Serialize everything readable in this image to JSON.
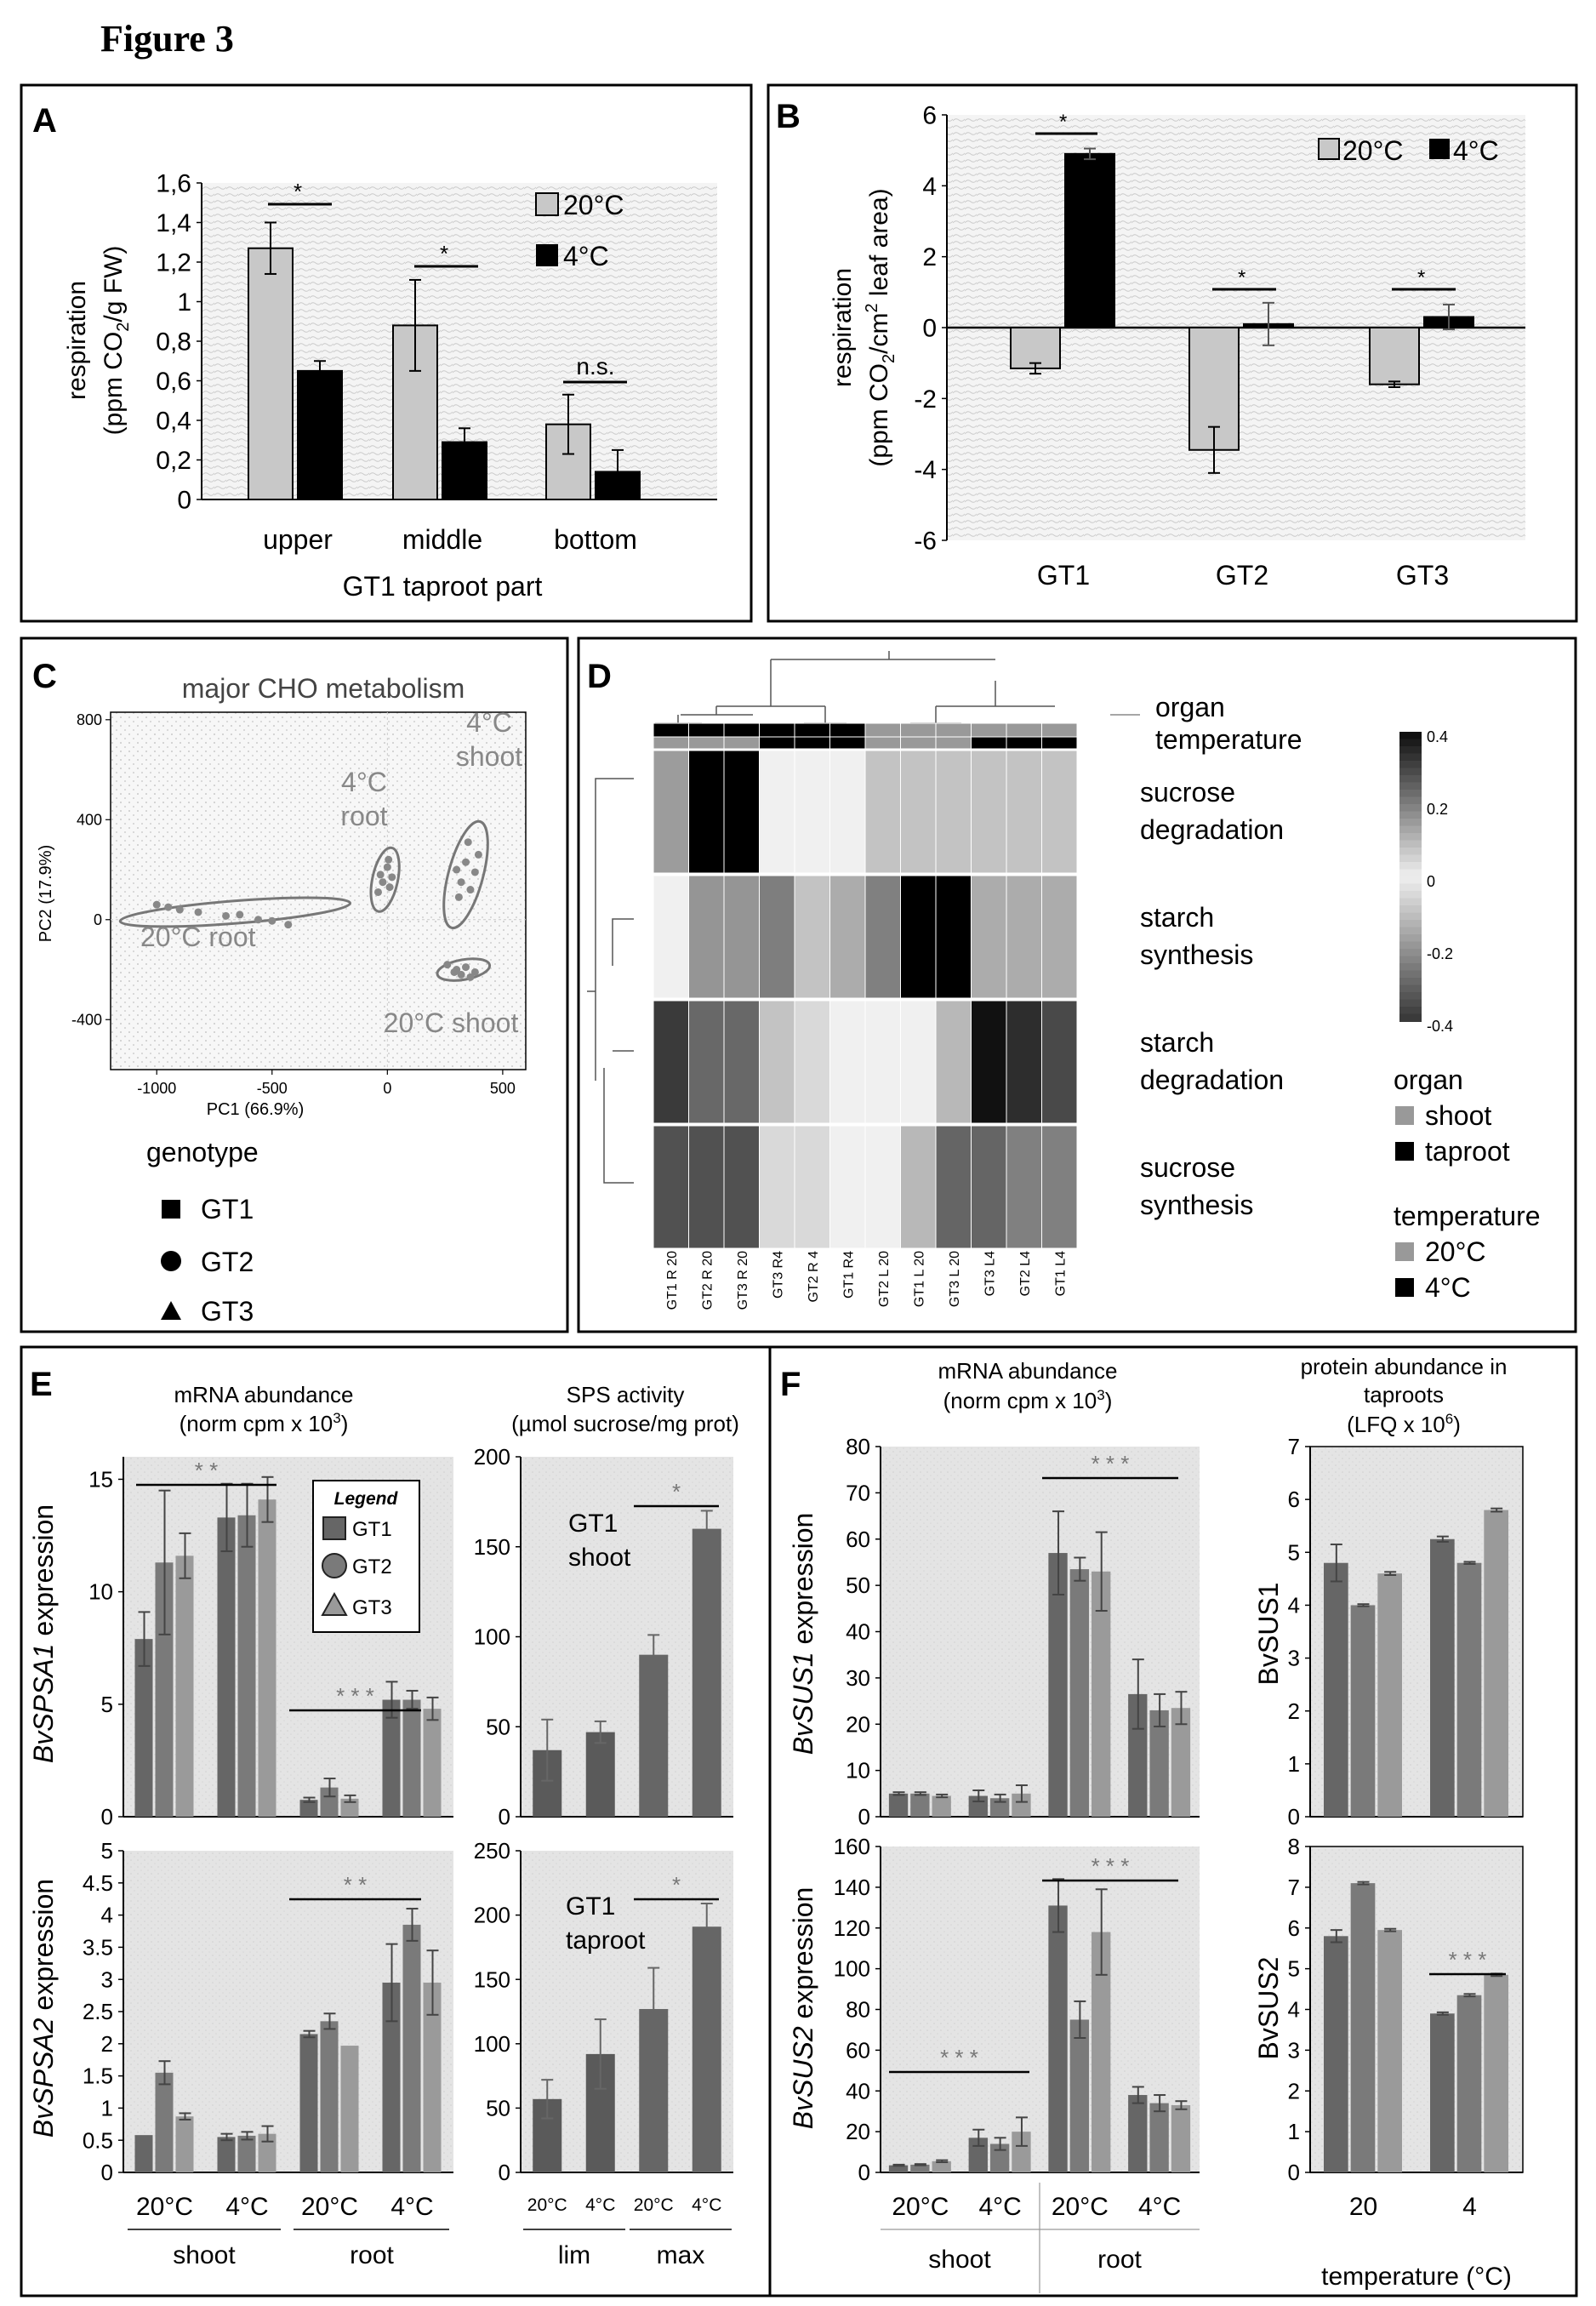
{
  "figure_title": "Figure 3",
  "colors": {
    "gray_bar": "#c8c8c8",
    "black_bar": "#000000",
    "gt1": "#666666",
    "gt2": "#7a7a7a",
    "gt3": "#9a9a9a",
    "dark": "#555555",
    "bg": "#eeeeee",
    "heat_high": "#111111",
    "heat_low": "#3a3a3a",
    "heat_mid": "#efefef"
  },
  "panels": {
    "A": {
      "letter": "A",
      "xgroup_label": "GT1 taproot part",
      "ylabel_1": "respiration",
      "ylabel_2": "(ppm CO",
      "ylabel_sub": "2",
      "ylabel_3": "/g FW)",
      "ticklabels": [
        "0",
        "0,2",
        "0,4",
        "0,6",
        "0,8",
        "1",
        "1,2",
        "1,4",
        "1,6"
      ],
      "legend": [
        "20°C",
        "4°C"
      ],
      "sig": [
        "*",
        "*",
        "n.s."
      ]
    },
    "B": {
      "letter": "B",
      "ylabel_1": "respiration",
      "ylabel_2": "(ppm CO",
      "ylabel_sub": "2",
      "ylabel_3": "/cm",
      "ylabel_sup": "2",
      "ylabel_4": " leaf area)",
      "legend": [
        "20°C",
        "4°C"
      ],
      "sig": [
        "*",
        "*",
        "*"
      ]
    },
    "C": {
      "letter": "C",
      "title": "major CHO metabolism",
      "xlabel": "PC1 (66.9%)",
      "ylabel": "PC2 (17.9%)",
      "xticks": [
        "-1000",
        "-500",
        "0",
        "500"
      ],
      "yticks": [
        "800",
        "400",
        "0",
        "-400"
      ],
      "groups": [
        "20°C root",
        "4°C root",
        "4°C shoot",
        "20°C shoot"
      ],
      "group_lines": [
        [
          "20°C root"
        ],
        [
          "4°C",
          "root"
        ],
        [
          "4°C",
          "shoot"
        ],
        [
          "20°C shoot"
        ]
      ],
      "legend_title": "genotype",
      "legend": [
        "GT1",
        "GT2",
        "GT3"
      ]
    },
    "D": {
      "letter": "D",
      "label_organ": "organ",
      "label_temperature": "temperature",
      "rows": [
        [
          "sucrose",
          "degradation"
        ],
        [
          "starch",
          "synthesis"
        ],
        [
          "starch",
          "degradation"
        ],
        [
          "sucrose",
          "synthesis"
        ]
      ],
      "columns": [
        "GT1 R 20",
        "GT2 R 20",
        "GT3 R 20",
        "GT3 R4",
        "GT2 R 4",
        "GT1 R4",
        "GT2 L 20",
        "GT1 L 20",
        "GT3 L 20",
        "GT3 L4",
        "GT2 L4",
        "GT1 L4"
      ],
      "scale_ticks": [
        "0.4",
        "0.2",
        "0",
        "-0.2",
        "-0.4"
      ],
      "organ_title": "organ",
      "organ_items": [
        "shoot",
        "taproot"
      ],
      "temperature_title": "temperature",
      "temperature_items": [
        "20°C",
        "4°C"
      ]
    },
    "E": {
      "letter": "E",
      "mrna_title_1": "mRNA abundance",
      "mrna_title_2": "(norm cpm x 10",
      "mrna_sup": "3",
      "mrna_title_3": ")",
      "sps_title_1": "SPS activity",
      "sps_title_2": "(µmol sucrose/mg prot)",
      "ylabel_top_gene": "BvSPSA1",
      "ylabel_bottom_gene": "BvSPSA2",
      "ylabel_suffix": " expression",
      "legend_title": "Legend",
      "legend": [
        "GT1",
        "GT2",
        "GT3"
      ],
      "top_ticks": [
        "0",
        "5",
        "10",
        "15"
      ],
      "bottom_ticks": [
        "0",
        "0.5",
        "1",
        "1.5",
        "2",
        "2.5",
        "3",
        "3.5",
        "4",
        "4.5",
        "5"
      ],
      "sps_top_ticks": [
        "0",
        "50",
        "100",
        "150",
        "200"
      ],
      "sps_bottom_ticks": [
        "0",
        "50",
        "100",
        "150",
        "200",
        "250"
      ],
      "sps_top_label_1": "GT1",
      "sps_top_label_2": "shoot",
      "sps_bottom_label_1": "GT1",
      "sps_bottom_label_2": "taproot",
      "temps": [
        "20°C",
        "4°C",
        "20°C",
        "4°C"
      ],
      "organs": [
        "shoot",
        "root"
      ],
      "sps_temps": [
        "20°C",
        "4°C",
        "20°C",
        "4°C"
      ],
      "sps_groups": [
        "lim",
        "max"
      ],
      "sig_top": [
        "* *",
        "* * *"
      ],
      "sig_bottom": [
        "* *"
      ],
      "sig_sps": [
        "*",
        "*"
      ]
    },
    "F": {
      "letter": "F",
      "mrna_title_1": "mRNA abundance",
      "mrna_title_2": "(norm cpm x 10",
      "mrna_sup": "3",
      "mrna_title_3": ")",
      "prot_title_1": "protein abundance in",
      "prot_title_2": "taproots",
      "prot_title_3": "(LFQ x 10",
      "prot_sup": "6",
      "prot_title_4": ")",
      "ylabel_top_gene": "BvSUS1",
      "ylabel_bottom_gene": "BvSUS2",
      "ylabel_suffix": " expression",
      "prot_ylabel_top": "BvSUS1",
      "prot_ylabel_bottom": "BvSUS2",
      "top_ticks": [
        "0",
        "10",
        "20",
        "30",
        "40",
        "50",
        "60",
        "70",
        "80"
      ],
      "bottom_ticks": [
        "0",
        "20",
        "40",
        "60",
        "80",
        "100",
        "120",
        "140",
        "160"
      ],
      "prot_top_ticks": [
        "0",
        "1",
        "2",
        "3",
        "4",
        "5",
        "6",
        "7"
      ],
      "prot_bottom_ticks": [
        "0",
        "1",
        "2",
        "3",
        "4",
        "5",
        "6",
        "7",
        "8"
      ],
      "temps": [
        "20°C",
        "4°C",
        "20°C",
        "4°C"
      ],
      "organs": [
        "shoot",
        "root"
      ],
      "prot_temps": [
        "20",
        "4"
      ],
      "prot_xlabel": "temperature (°C)",
      "sig_top": [
        "* * *"
      ],
      "sig_bottom": [
        "* * *",
        "* * *"
      ],
      "sig_prot": [
        "* * *"
      ]
    }
  },
  "chart_data": [
    {
      "panel": "A",
      "type": "bar",
      "title": "",
      "xlabel": "GT1 taproot part",
      "ylabel": "respiration (ppm CO2/g FW)",
      "categories": [
        "upper",
        "middle",
        "bottom"
      ],
      "ylim": [
        0,
        1.6
      ],
      "series": [
        {
          "name": "20°C",
          "values": [
            1.27,
            0.88,
            0.38
          ],
          "errors": [
            0.13,
            0.23,
            0.15
          ]
        },
        {
          "name": "4°C",
          "values": [
            0.65,
            0.29,
            0.14
          ],
          "errors": [
            0.05,
            0.07,
            0.11
          ]
        }
      ]
    },
    {
      "panel": "B",
      "type": "bar",
      "title": "",
      "ylabel": "respiration (ppm CO2/cm2 leaf area)",
      "categories": [
        "GT1",
        "GT2",
        "GT3"
      ],
      "ylim": [
        -6,
        6
      ],
      "yticks": [
        "-6",
        "-4",
        "-2",
        "0",
        "2",
        "4",
        "6"
      ],
      "series": [
        {
          "name": "20°C",
          "values": [
            -1.15,
            -3.45,
            -1.6
          ],
          "errors": [
            0.15,
            0.65,
            0.08
          ]
        },
        {
          "name": "4°C",
          "values": [
            4.9,
            0.1,
            0.3
          ],
          "errors": [
            0.15,
            0.6,
            0.35
          ]
        }
      ]
    },
    {
      "panel": "C",
      "type": "scatter",
      "title": "major CHO metabolism",
      "xlabel": "PC1 (66.9%)",
      "ylabel": "PC2 (17.9%)",
      "xlim": [
        -1200,
        600
      ],
      "ylim": [
        -600,
        830
      ],
      "groups": [
        {
          "name": "20°C root",
          "center": [
            -660,
            30
          ],
          "points": [
            [
              -1000,
              60
            ],
            [
              -950,
              50
            ],
            [
              -900,
              40
            ],
            [
              -820,
              30
            ],
            [
              -700,
              15
            ],
            [
              -640,
              20
            ],
            [
              -560,
              0
            ],
            [
              -500,
              -5
            ],
            [
              -430,
              -20
            ]
          ],
          "ellipse": {
            "rx": 500,
            "ry": 45,
            "angle_deg": -4.5
          }
        },
        {
          "name": "4°C root",
          "center": [
            -10,
            160
          ],
          "points": [
            [
              -30,
              180
            ],
            [
              0,
              210
            ],
            [
              -20,
              150
            ],
            [
              10,
              130
            ],
            [
              -40,
              110
            ],
            [
              20,
              170
            ],
            [
              5,
              240
            ]
          ],
          "ellipse": {
            "rx": 55,
            "ry": 130,
            "angle_deg": 12
          }
        },
        {
          "name": "4°C shoot",
          "center": [
            340,
            180
          ],
          "points": [
            [
              300,
              200
            ],
            [
              340,
              230
            ],
            [
              380,
              190
            ],
            [
              320,
              150
            ],
            [
              360,
              120
            ],
            [
              310,
              90
            ],
            [
              395,
              260
            ],
            [
              350,
              310
            ]
          ],
          "ellipse": {
            "rx": 75,
            "ry": 220,
            "angle_deg": 15
          }
        },
        {
          "name": "20°C shoot",
          "center": [
            330,
            -200
          ],
          "points": [
            [
              260,
              -180
            ],
            [
              300,
              -200
            ],
            [
              340,
              -190
            ],
            [
              380,
              -210
            ],
            [
              320,
              -220
            ],
            [
              360,
              -230
            ],
            [
              290,
              -210
            ]
          ],
          "ellipse": {
            "rx": 115,
            "ry": 40,
            "angle_deg": -10
          }
        }
      ]
    },
    {
      "panel": "D",
      "type": "heatmap",
      "title": "",
      "rows": [
        "sucrose degradation",
        "starch synthesis",
        "starch degradation",
        "sucrose synthesis"
      ],
      "columns": [
        "GT1 R 20",
        "GT2 R 20",
        "GT3 R 20",
        "GT3 R4",
        "GT2 R 4",
        "GT1 R4",
        "GT2 L 20",
        "GT1 L 20",
        "GT3 L 20",
        "GT3 L4",
        "GT2 L4",
        "GT1 L4"
      ],
      "organ": [
        "taproot",
        "taproot",
        "taproot",
        "taproot",
        "taproot",
        "taproot",
        "shoot",
        "shoot",
        "shoot",
        "shoot",
        "shoot",
        "shoot"
      ],
      "temperature": [
        "20°C",
        "20°C",
        "20°C",
        "4°C",
        "4°C",
        "4°C",
        "20°C",
        "20°C",
        "20°C",
        "4°C",
        "4°C",
        "4°C"
      ],
      "scale": [
        -0.4,
        0.4
      ],
      "values": [
        [
          0.15,
          0.45,
          0.45,
          0.0,
          0.0,
          0.0,
          -0.1,
          -0.1,
          -0.1,
          -0.1,
          -0.1,
          -0.1
        ],
        [
          0.0,
          -0.2,
          -0.2,
          -0.25,
          -0.1,
          -0.15,
          0.2,
          0.45,
          0.45,
          -0.15,
          -0.15,
          -0.15
        ],
        [
          -0.4,
          -0.3,
          -0.3,
          -0.1,
          -0.05,
          0.0,
          0.0,
          0.0,
          0.1,
          0.4,
          0.35,
          0.3
        ],
        [
          -0.35,
          -0.35,
          -0.35,
          -0.05,
          -0.05,
          0.0,
          0.0,
          0.1,
          0.25,
          0.25,
          0.2,
          0.2
        ]
      ]
    },
    {
      "panel": "E",
      "type": "bar",
      "title": "BvSPSA1 expression",
      "categories": [
        "shoot 20°C",
        "shoot 4°C",
        "root 20°C",
        "root 4°C"
      ],
      "ylim": [
        0,
        16
      ],
      "series": [
        {
          "name": "GT1",
          "values": [
            7.9,
            13.3,
            0.75,
            5.2
          ],
          "errors": [
            1.2,
            1.5,
            0.1,
            0.8
          ]
        },
        {
          "name": "GT2",
          "values": [
            11.3,
            13.4,
            1.3,
            5.2
          ],
          "errors": [
            3.2,
            1.4,
            0.4,
            0.4
          ]
        },
        {
          "name": "GT3",
          "values": [
            11.6,
            14.1,
            0.8,
            4.8
          ],
          "errors": [
            1.0,
            1.0,
            0.15,
            0.5
          ]
        }
      ]
    },
    {
      "panel": "E",
      "type": "bar",
      "title": "BvSPSA2 expression",
      "categories": [
        "shoot 20°C",
        "shoot 4°C",
        "root 20°C",
        "root 4°C"
      ],
      "ylim": [
        0,
        5
      ],
      "series": [
        {
          "name": "GT1",
          "values": [
            0.58,
            0.55,
            2.15,
            2.95
          ],
          "errors": [
            0.0,
            0.05,
            0.05,
            0.6
          ]
        },
        {
          "name": "GT2",
          "values": [
            1.55,
            0.57,
            2.35,
            3.85
          ],
          "errors": [
            0.18,
            0.06,
            0.12,
            0.25
          ]
        },
        {
          "name": "GT3",
          "values": [
            0.87,
            0.6,
            1.97,
            2.95
          ],
          "errors": [
            0.05,
            0.12,
            0.0,
            0.5
          ]
        }
      ]
    },
    {
      "panel": "E",
      "type": "bar",
      "title": "SPS activity GT1 shoot",
      "categories": [
        "lim 20°C",
        "lim 4°C",
        "max 20°C",
        "max 4°C"
      ],
      "ylim": [
        0,
        200
      ],
      "values": [
        37,
        47,
        90,
        160
      ],
      "errors": [
        17,
        6,
        11,
        10
      ]
    },
    {
      "panel": "E",
      "type": "bar",
      "title": "SPS activity GT1 taproot",
      "categories": [
        "lim 20°C",
        "lim 4°C",
        "max 20°C",
        "max 4°C"
      ],
      "ylim": [
        0,
        250
      ],
      "values": [
        57,
        92,
        127,
        191
      ],
      "errors": [
        15,
        27,
        32,
        18
      ]
    },
    {
      "panel": "F",
      "type": "bar",
      "title": "BvSUS1 expression",
      "categories": [
        "shoot 20°C",
        "shoot 4°C",
        "root 20°C",
        "root 4°C"
      ],
      "ylim": [
        0,
        80
      ],
      "series": [
        {
          "name": "GT1",
          "values": [
            5,
            4.5,
            57,
            26.5
          ],
          "errors": [
            0.3,
            1.2,
            9,
            7.5
          ]
        },
        {
          "name": "GT2",
          "values": [
            5,
            4.0,
            53.5,
            23
          ],
          "errors": [
            0.3,
            0.8,
            2.5,
            3.5
          ]
        },
        {
          "name": "GT3",
          "values": [
            4.5,
            5,
            53,
            23.5
          ],
          "errors": [
            0.3,
            1.8,
            8.5,
            3.5
          ]
        }
      ]
    },
    {
      "panel": "F",
      "type": "bar",
      "title": "BvSUS2 expression",
      "categories": [
        "shoot 20°C",
        "shoot 4°C",
        "root 20°C",
        "root 4°C"
      ],
      "ylim": [
        0,
        160
      ],
      "series": [
        {
          "name": "GT1",
          "values": [
            3.5,
            17,
            131,
            38
          ],
          "errors": [
            0.3,
            4,
            13,
            4
          ]
        },
        {
          "name": "GT2",
          "values": [
            3.8,
            14,
            75,
            34
          ],
          "errors": [
            0.3,
            3,
            9,
            4
          ]
        },
        {
          "name": "GT3",
          "values": [
            5.5,
            20,
            118,
            33
          ],
          "errors": [
            0.5,
            7,
            21,
            2
          ]
        }
      ]
    },
    {
      "panel": "F",
      "type": "bar",
      "title": "BvSUS1 protein abundance",
      "categories": [
        "20",
        "4"
      ],
      "ylim": [
        0,
        7
      ],
      "series": [
        {
          "name": "GT1",
          "values": [
            4.8,
            5.25
          ],
          "errors": [
            0.35,
            0.05
          ]
        },
        {
          "name": "GT2",
          "values": [
            4.0,
            4.8
          ],
          "errors": [
            0.02,
            0.02
          ]
        },
        {
          "name": "GT3",
          "values": [
            4.6,
            5.8
          ],
          "errors": [
            0.03,
            0.03
          ]
        }
      ]
    },
    {
      "panel": "F",
      "type": "bar",
      "title": "BvSUS2 protein abundance",
      "categories": [
        "20",
        "4"
      ],
      "ylim": [
        0,
        8
      ],
      "series": [
        {
          "name": "GT1",
          "values": [
            5.8,
            3.9
          ],
          "errors": [
            0.15,
            0.03
          ]
        },
        {
          "name": "GT2",
          "values": [
            7.1,
            4.35
          ],
          "errors": [
            0.03,
            0.03
          ]
        },
        {
          "name": "GT3",
          "values": [
            5.95,
            4.85
          ],
          "errors": [
            0.03,
            0.03
          ]
        }
      ]
    }
  ]
}
